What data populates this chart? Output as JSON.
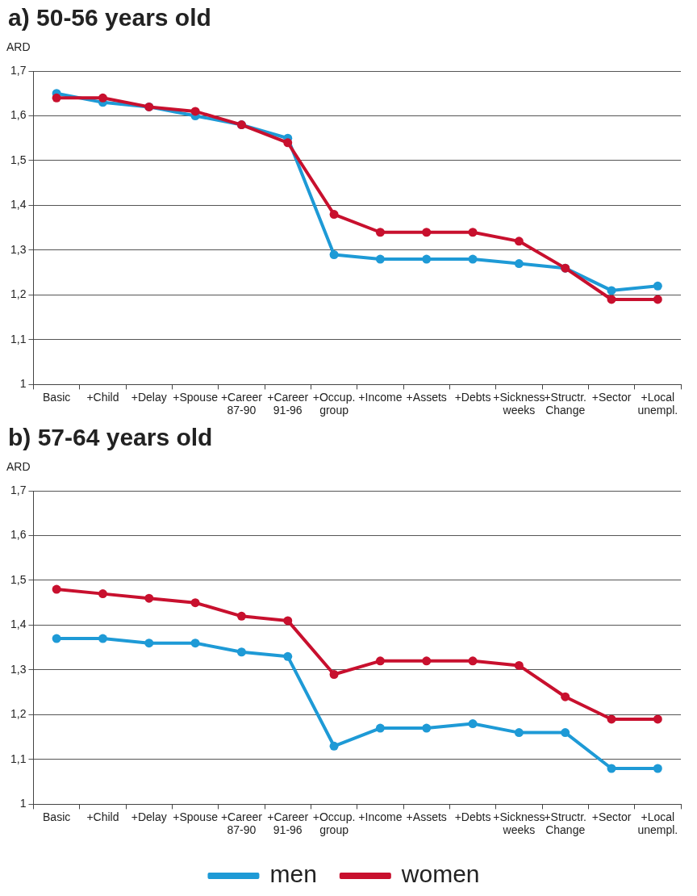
{
  "chart_data": [
    {
      "type": "line",
      "title": "a) 50-56 years old",
      "ylabel": "ARD",
      "categories": [
        "Basic",
        "+Child",
        "+Delay",
        "+Spouse",
        "+Career 87-90",
        "+Career 91-96",
        "+Occup. group",
        "+Income",
        "+Assets",
        "+Debts",
        "+Sickness weeks",
        "+Structr. Change",
        "+Sector",
        "+Local unempl."
      ],
      "series": [
        {
          "color": "#1e9ad6",
          "values": [
            1.65,
            1.63,
            1.62,
            1.6,
            1.58,
            1.55,
            1.29,
            1.28,
            1.28,
            1.28,
            1.27,
            1.26,
            1.21,
            1.22
          ]
        },
        {
          "color": "#c8102e",
          "values": [
            1.64,
            1.64,
            1.62,
            1.61,
            1.58,
            1.54,
            1.38,
            1.34,
            1.34,
            1.34,
            1.32,
            1.26,
            1.19,
            1.19
          ]
        }
      ],
      "ylim": [
        1,
        1.7
      ],
      "yticks": [
        1,
        {
          "value": 1.1,
          "label": "1,1"
        },
        {
          "value": 1.2,
          "label": "1,2"
        },
        {
          "value": 1.3,
          "label": "1,3"
        },
        {
          "value": 1.4,
          "label": "1,4"
        },
        {
          "value": 1.5,
          "label": "1,5"
        },
        {
          "value": 1.6,
          "label": "1,6"
        },
        {
          "value": 1.7,
          "label": "1,7"
        }
      ],
      "grid": "y",
      "marker": "circle",
      "line_style": "solid"
    },
    {
      "type": "line",
      "title": "b) 57-64 years old",
      "ylabel": "ARD",
      "categories": [
        "Basic",
        "+Child",
        "+Delay",
        "+Spouse",
        "+Career 87-90",
        "+Career 91-96",
        "+Occup. group",
        "+Income",
        "+Assets",
        "+Debts",
        "+Sickness weeks",
        "+Structr. Change",
        "+Sector",
        "+Local unempl."
      ],
      "series": [
        {
          "name": "men",
          "color": "#1e9ad6",
          "values": [
            1.37,
            1.37,
            1.36,
            1.36,
            1.34,
            1.33,
            1.13,
            1.17,
            1.17,
            1.18,
            1.16,
            1.16,
            1.08,
            1.08
          ]
        },
        {
          "name": "women",
          "color": "#c8102e",
          "values": [
            1.48,
            1.47,
            1.46,
            1.45,
            1.42,
            1.41,
            1.29,
            1.32,
            1.32,
            1.32,
            1.31,
            1.24,
            1.19,
            1.19
          ]
        }
      ],
      "ylim": [
        1,
        1.7
      ],
      "yticks": [
        1,
        {
          "value": 1.1,
          "label": "1,1"
        },
        {
          "value": 1.2,
          "label": "1,2"
        },
        {
          "value": 1.3,
          "label": "1,3"
        },
        {
          "value": 1.4,
          "label": "1,4"
        },
        {
          "value": 1.5,
          "label": "1,5"
        },
        {
          "value": 1.6,
          "label": "1,6"
        },
        {
          "value": 1.7,
          "label": "1,7"
        }
      ],
      "grid": "y",
      "marker": "circle",
      "line_style": "solid",
      "legend": "bottom"
    }
  ]
}
